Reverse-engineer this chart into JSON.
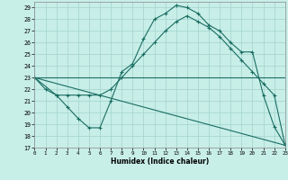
{
  "xlabel": "Humidex (Indice chaleur)",
  "bg_color": "#c8eee8",
  "grid_color": "#a0d4cc",
  "line_color": "#1a6e62",
  "xlim": [
    0,
    23
  ],
  "ylim": [
    17,
    29.5
  ],
  "xticks": [
    0,
    1,
    2,
    3,
    4,
    5,
    6,
    7,
    8,
    9,
    10,
    11,
    12,
    13,
    14,
    15,
    16,
    17,
    18,
    19,
    20,
    21,
    22,
    23
  ],
  "yticks": [
    17,
    18,
    19,
    20,
    21,
    22,
    23,
    24,
    25,
    26,
    27,
    28,
    29
  ],
  "curve1_x": [
    0,
    1,
    2,
    3,
    4,
    5,
    6,
    7,
    8,
    9,
    10,
    11,
    12,
    13,
    14,
    15,
    16,
    17,
    18,
    19,
    20,
    21,
    22,
    23
  ],
  "curve1_y": [
    23,
    22,
    21.5,
    20.5,
    19.5,
    18.7,
    18.7,
    21.0,
    23.5,
    24.2,
    26.3,
    28.0,
    28.5,
    29.2,
    29.0,
    28.5,
    27.5,
    27.0,
    26.0,
    25.2,
    25.2,
    21.5,
    18.8,
    17.2
  ],
  "curve2_x": [
    0,
    2,
    3,
    4,
    5,
    6,
    7,
    8,
    9,
    10,
    11,
    12,
    13,
    14,
    15,
    16,
    17,
    18,
    19,
    20,
    21,
    22,
    23
  ],
  "curve2_y": [
    23,
    21.5,
    21.5,
    21.5,
    21.5,
    21.5,
    22.0,
    23.0,
    24.0,
    25.0,
    26.0,
    27.0,
    27.8,
    28.3,
    27.8,
    27.3,
    26.5,
    25.5,
    24.5,
    23.5,
    22.5,
    21.5,
    17.2
  ],
  "line3_x": [
    0,
    23
  ],
  "line3_y": [
    23,
    23
  ],
  "line4_x": [
    0,
    23
  ],
  "line4_y": [
    23,
    17.2
  ]
}
